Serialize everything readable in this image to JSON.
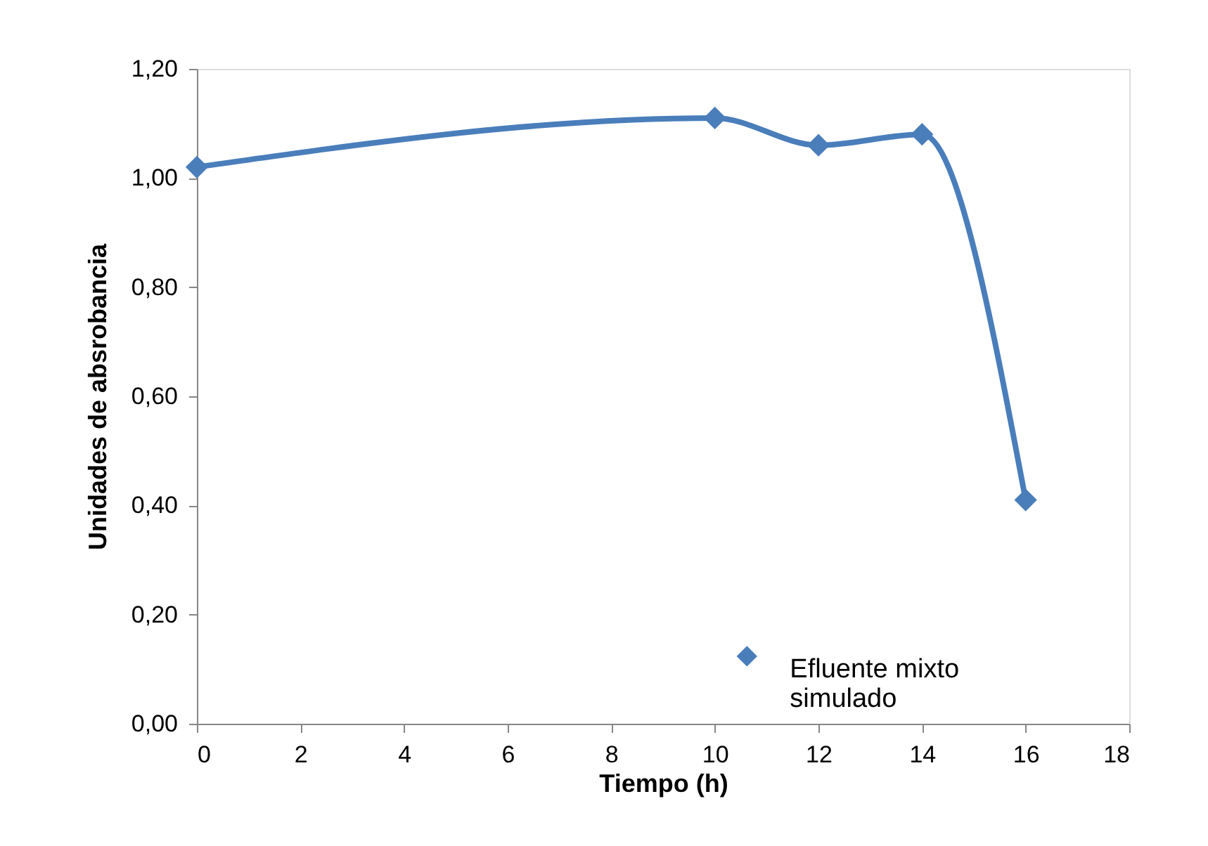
{
  "chart_data": {
    "type": "line",
    "xlabel": "Tiempo (h)",
    "ylabel": "Unidades de absrobancia",
    "x": [
      0,
      10,
      12,
      14,
      16
    ],
    "series": [
      {
        "name": "Efluente mixto simulado",
        "color": "#4a7ebb",
        "values": [
          1.02,
          1.11,
          1.06,
          1.08,
          0.41
        ]
      }
    ],
    "xlim": [
      0,
      18
    ],
    "xticks": [
      0,
      2,
      4,
      6,
      8,
      10,
      12,
      14,
      16,
      18
    ],
    "ylim": [
      0,
      1.2
    ],
    "yticks": [
      {
        "value": 0,
        "label": "0,00"
      },
      {
        "value": 0.2,
        "label": "0,20"
      },
      {
        "value": 0.4,
        "label": "0,40"
      },
      {
        "value": 0.6,
        "label": "0,60"
      },
      {
        "value": 0.8,
        "label": "0,80"
      },
      {
        "value": 1.0,
        "label": "1,00"
      },
      {
        "value": 1.2,
        "label": "1,20"
      }
    ],
    "grid": false,
    "legend": "bottom right",
    "marker": "diamond",
    "line_style": "solid"
  }
}
